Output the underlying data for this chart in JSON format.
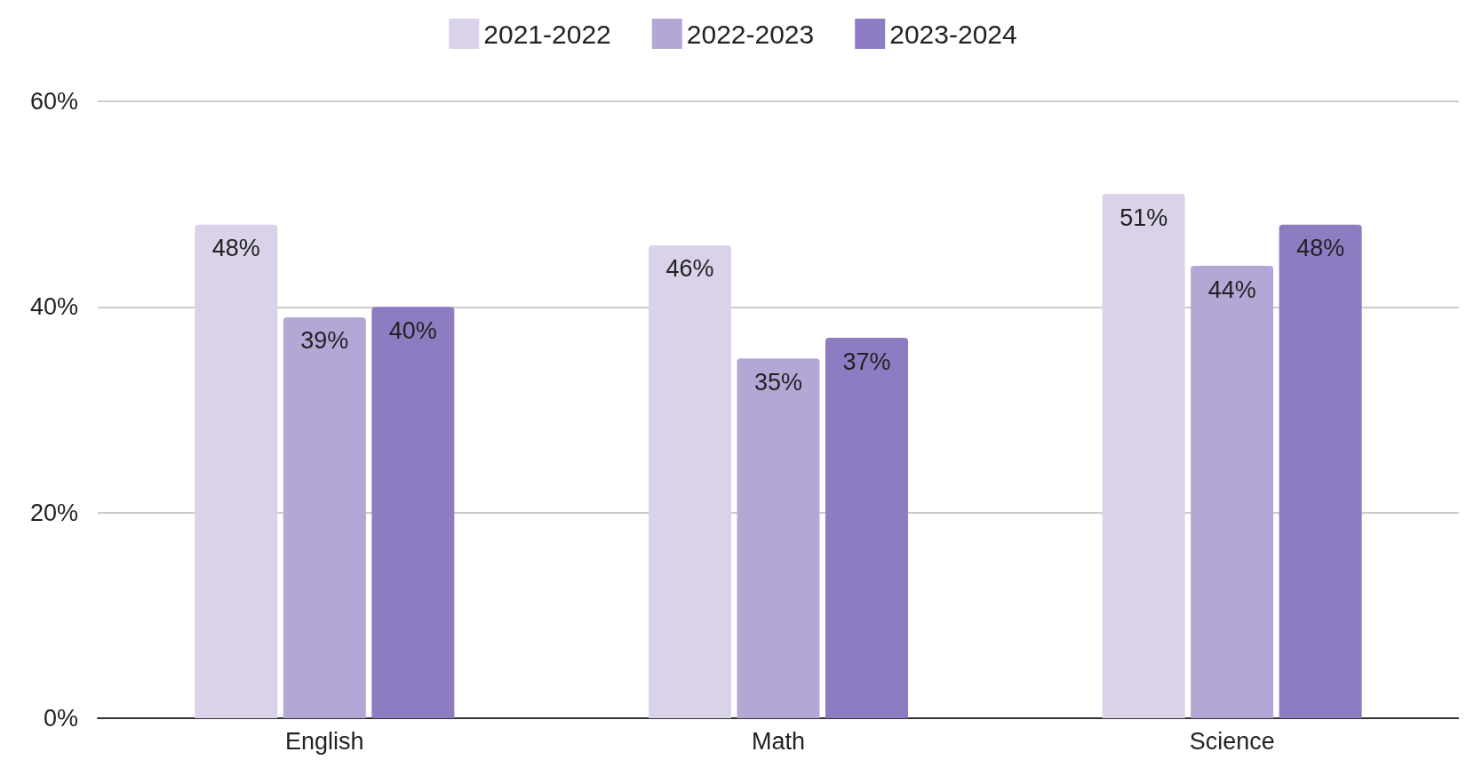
{
  "chart_data": {
    "type": "bar",
    "categories": [
      "English",
      "Math",
      "Science"
    ],
    "series": [
      {
        "name": "2021-2022",
        "color": "#d9d2e9",
        "values": [
          48,
          46,
          51
        ],
        "value_labels": [
          "48%",
          "46%",
          "51%"
        ]
      },
      {
        "name": "2022-2023",
        "color": "#b4a7d6",
        "values": [
          39,
          35,
          44
        ],
        "value_labels": [
          "39%",
          "35%",
          "44%"
        ]
      },
      {
        "name": "2023-2024",
        "color": "#8e7cc3",
        "values": [
          40,
          37,
          48
        ],
        "value_labels": [
          "40%",
          "37%",
          "48%"
        ]
      }
    ],
    "ylim": [
      0,
      60
    ],
    "yticks": [
      {
        "value": 0,
        "label": "0%"
      },
      {
        "value": 20,
        "label": "20%"
      },
      {
        "value": 40,
        "label": "40%"
      },
      {
        "value": 60,
        "label": "60%"
      }
    ],
    "grid": "y",
    "legend": "top"
  }
}
